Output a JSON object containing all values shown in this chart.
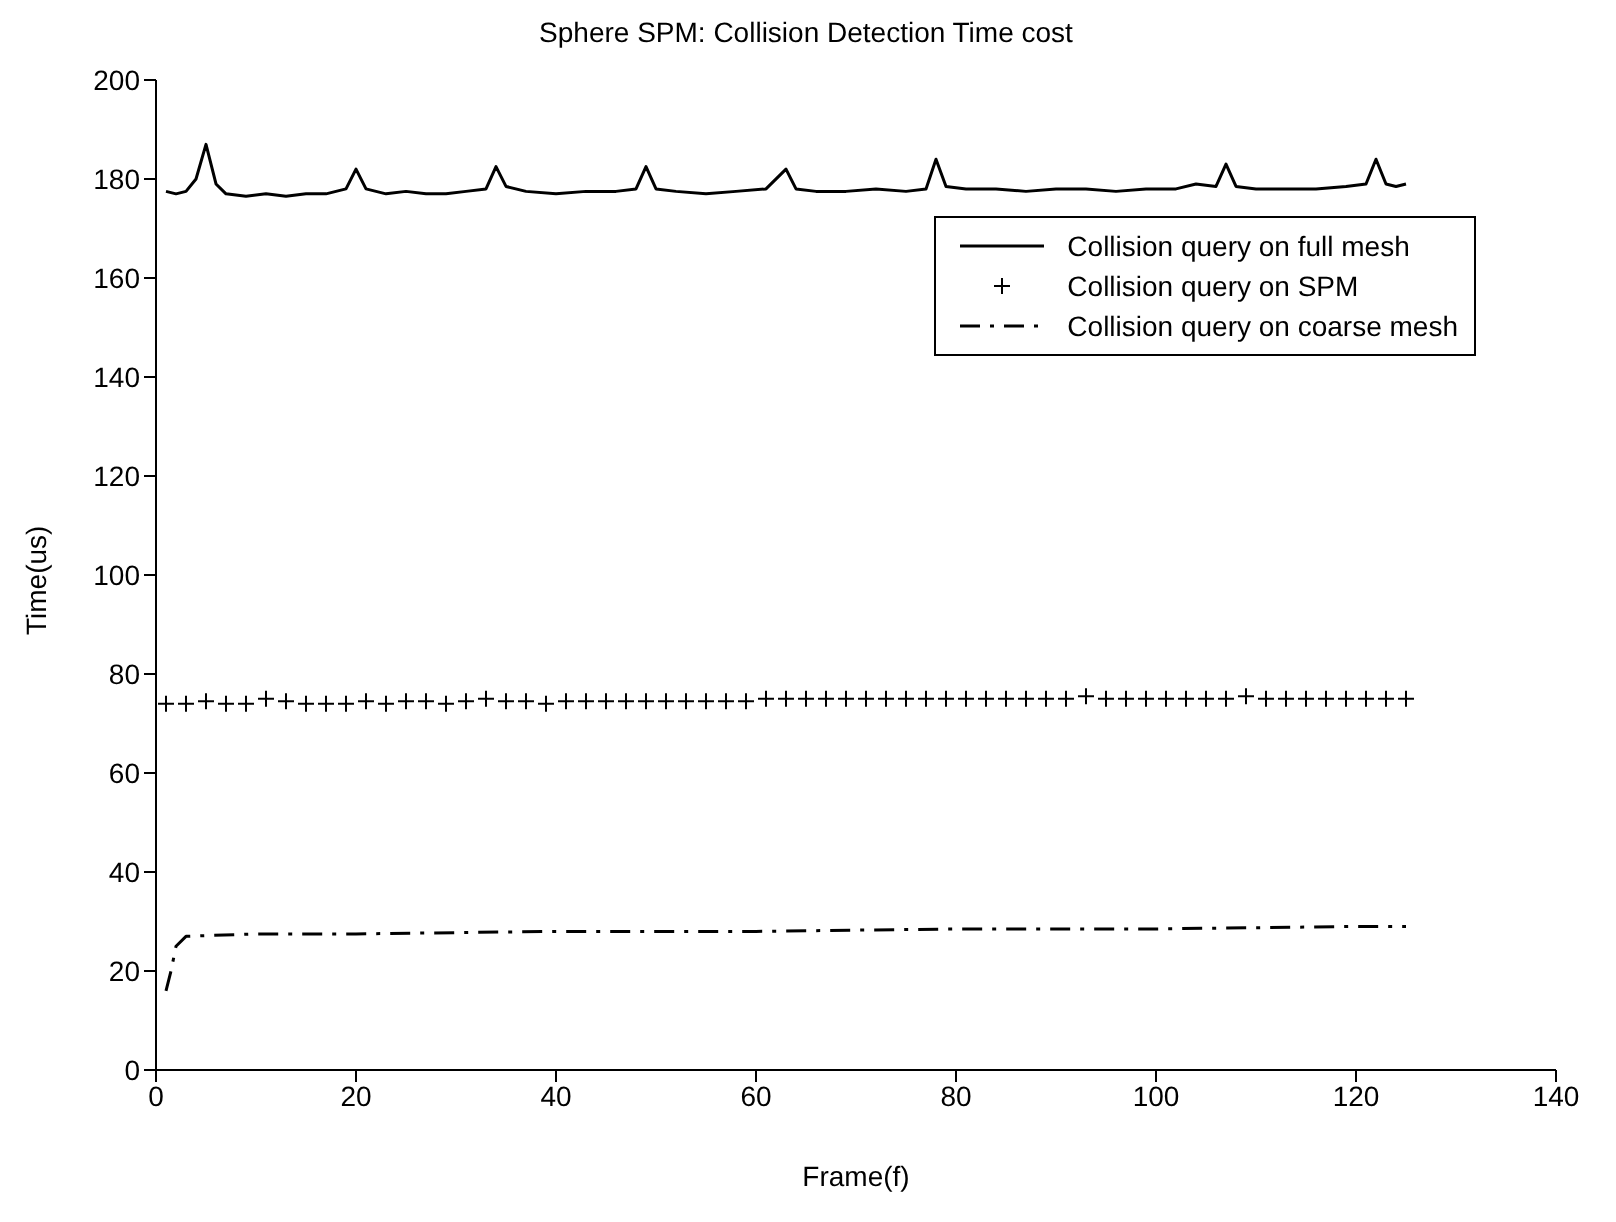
{
  "chart_data": {
    "type": "line",
    "title": "Sphere SPM: Collision Detection Time cost",
    "xlabel": "Frame(f)",
    "ylabel": "Time(us)",
    "xlim": [
      0,
      140
    ],
    "xticks": [
      0,
      20,
      40,
      60,
      80,
      100,
      120,
      140
    ],
    "ylim": [
      0,
      200
    ],
    "yticks": [
      0,
      20,
      40,
      60,
      80,
      100,
      120,
      140,
      160,
      180,
      200
    ],
    "grid": false,
    "legend": "top right",
    "series": [
      {
        "name": "Collision query on full mesh",
        "color": "#000000",
        "line_style": "solid",
        "marker": "none",
        "x": [
          1,
          2,
          3,
          4,
          5,
          6,
          7,
          9,
          11,
          13,
          15,
          17,
          19,
          20,
          21,
          23,
          25,
          27,
          29,
          31,
          33,
          34,
          35,
          37,
          40,
          43,
          46,
          48,
          49,
          50,
          52,
          55,
          58,
          61,
          63,
          64,
          66,
          69,
          72,
          75,
          77,
          78,
          79,
          81,
          84,
          87,
          90,
          93,
          96,
          99,
          102,
          104,
          106,
          107,
          108,
          110,
          113,
          116,
          119,
          121,
          122,
          123,
          124,
          125
        ],
        "values": [
          177.5,
          177,
          177.5,
          180,
          187,
          179,
          177,
          176.5,
          177,
          176.5,
          177,
          177,
          178,
          182,
          178,
          177,
          177.5,
          177,
          177,
          177.5,
          178,
          182.5,
          178.5,
          177.5,
          177,
          177.5,
          177.5,
          178,
          182.5,
          178,
          177.5,
          177,
          177.5,
          178,
          182,
          178,
          177.5,
          177.5,
          178,
          177.5,
          178,
          184,
          178.5,
          178,
          178,
          177.5,
          178,
          178,
          177.5,
          178,
          178,
          179,
          178.5,
          183,
          178.5,
          178,
          178,
          178,
          178.5,
          179,
          184,
          179,
          178.5,
          179
        ]
      },
      {
        "name": "Collision query on SPM",
        "type": "scatter",
        "color": "#000000",
        "marker": "cross",
        "x": [
          1,
          3,
          5,
          7,
          9,
          11,
          13,
          15,
          17,
          19,
          21,
          23,
          25,
          27,
          29,
          31,
          33,
          35,
          37,
          39,
          41,
          43,
          45,
          47,
          49,
          51,
          53,
          55,
          57,
          59,
          61,
          63,
          65,
          67,
          69,
          71,
          73,
          75,
          77,
          79,
          81,
          83,
          85,
          87,
          89,
          91,
          93,
          95,
          97,
          99,
          101,
          103,
          105,
          107,
          109,
          111,
          113,
          115,
          117,
          119,
          121,
          123,
          125
        ],
        "values": [
          74,
          74,
          74.5,
          74,
          74,
          75,
          74.5,
          74,
          74,
          74,
          74.5,
          74,
          74.5,
          74.5,
          74,
          74.5,
          75,
          74.5,
          74.5,
          74,
          74.5,
          74.5,
          74.5,
          74.5,
          74.5,
          74.5,
          74.5,
          74.5,
          74.5,
          74.5,
          75,
          75,
          75,
          75,
          75,
          75,
          75,
          75,
          75,
          75,
          75,
          75,
          75,
          75,
          75,
          75,
          75.5,
          75,
          75,
          75,
          75,
          75,
          75,
          75,
          75.5,
          75,
          75,
          75,
          75,
          75,
          75,
          75,
          75
        ]
      },
      {
        "name": "Collision query on coarse mesh",
        "color": "#000000",
        "line_style": "dashed",
        "marker": "none",
        "x": [
          1,
          1.5,
          2,
          3,
          10,
          20,
          40,
          60,
          80,
          100,
          120,
          125
        ],
        "values": [
          16,
          20,
          25,
          27,
          27.5,
          27.5,
          28,
          28,
          28.5,
          28.5,
          29,
          29
        ]
      }
    ]
  }
}
